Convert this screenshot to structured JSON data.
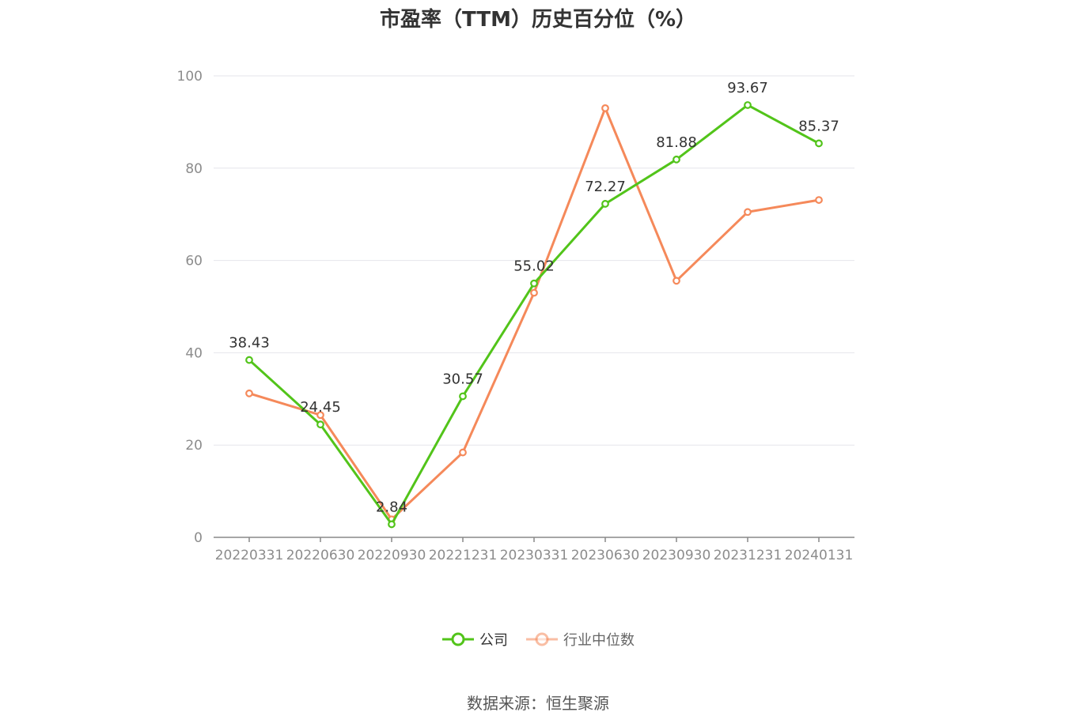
{
  "title": "市盈率（TTM）历史百分位（%）",
  "source_note": "数据来源：恒生聚源",
  "colors": {
    "company": "#52c41a",
    "industry": "#f5895a",
    "grid": "#e5e6eb",
    "axis": "#888888",
    "tick_text": "#8c8c8c",
    "label_text": "#333333"
  },
  "chart_data": {
    "type": "line",
    "title": "市盈率（TTM）历史百分位（%）",
    "categories": [
      "20220331",
      "20220630",
      "20220930",
      "20221231",
      "20230331",
      "20230630",
      "20230930",
      "20231231",
      "20240131"
    ],
    "series": [
      {
        "name": "公司",
        "values": [
          38.43,
          24.45,
          2.84,
          30.57,
          55.02,
          72.27,
          81.88,
          93.67,
          85.37
        ],
        "show_labels": true
      },
      {
        "name": "行业中位数",
        "values": [
          31.2,
          26.5,
          3.9,
          18.4,
          53.0,
          93.0,
          55.6,
          70.5,
          73.1
        ],
        "show_labels": false
      }
    ],
    "ylim": [
      0,
      100
    ],
    "yticks": [
      0,
      20,
      40,
      60,
      80,
      100
    ],
    "xlabel": "",
    "ylabel": "",
    "grid": true,
    "legend_position": "bottom-center"
  },
  "legend": {
    "items": [
      {
        "label": "公司",
        "icon": "circle-line-icon"
      },
      {
        "label": "行业中位数",
        "icon": "circle-line-icon"
      }
    ]
  }
}
